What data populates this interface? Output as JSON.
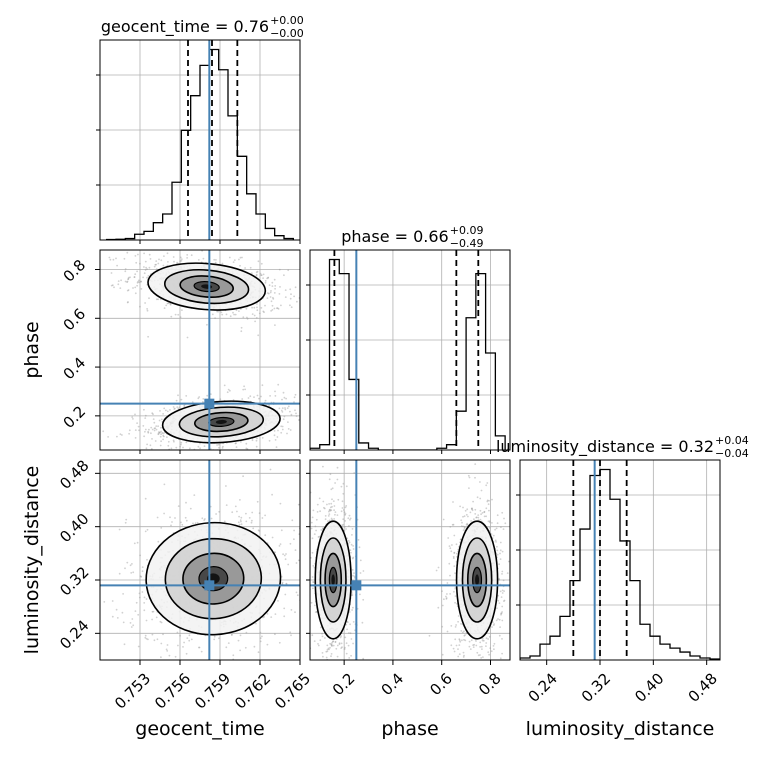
{
  "chart_data": {
    "type": "corner",
    "grid": true,
    "parameters": [
      {
        "name": "geocent_time",
        "xlabel": "geocent_time",
        "ylabel": "",
        "range": [
          0.75,
          0.765
        ],
        "ticks": [
          "0.753",
          "0.756",
          "0.759",
          "0.762",
          "0.765"
        ],
        "tick_values": [
          0.753,
          0.756,
          0.759,
          0.762,
          0.765
        ],
        "truth": 0.7582,
        "quantiles": [
          0.7566,
          0.7584,
          0.7603
        ],
        "title_main": "geocent_time = 0.76",
        "title_sup": "+0.00",
        "title_sub": "−0.00",
        "hist_bins": [
          0.7505,
          0.7512,
          0.7519,
          0.7526,
          0.7533,
          0.754,
          0.7547,
          0.7554,
          0.7561,
          0.7568,
          0.7575,
          0.7582,
          0.7589,
          0.7596,
          0.7603,
          0.761,
          0.7617,
          0.7624,
          0.7631,
          0.7638,
          0.7645
        ],
        "hist_counts": [
          0.3,
          0.5,
          1,
          4,
          6,
          12,
          18,
          40,
          76,
          100,
          121,
          132,
          118,
          86,
          58,
          32,
          18,
          8,
          3,
          1
        ]
      },
      {
        "name": "phase",
        "xlabel": "phase",
        "ylabel": "phase",
        "range": [
          0.06,
          0.88
        ],
        "ticks": [
          "0.2",
          "0.4",
          "0.6",
          "0.8"
        ],
        "tick_values": [
          0.2,
          0.4,
          0.6,
          0.8
        ],
        "truth": 0.25,
        "quantiles": [
          0.16,
          0.66,
          0.75
        ],
        "title_main": "phase = 0.66",
        "title_sup": "+0.09",
        "title_sub": "−0.49",
        "hist_bins": [
          0.06,
          0.1,
          0.14,
          0.18,
          0.22,
          0.26,
          0.3,
          0.34,
          0.38,
          0.42,
          0.46,
          0.5,
          0.54,
          0.58,
          0.62,
          0.66,
          0.7,
          0.74,
          0.78,
          0.82,
          0.86
        ],
        "hist_counts": [
          1,
          3,
          108,
          100,
          40,
          4,
          1,
          0,
          0,
          0,
          0,
          0,
          0,
          1,
          3,
          22,
          75,
          100,
          55,
          8
        ]
      },
      {
        "name": "luminosity_distance",
        "xlabel": "luminosity_distance",
        "ylabel": "luminosity_distance",
        "range": [
          0.2,
          0.5
        ],
        "ticks": [
          "0.24",
          "0.32",
          "0.40",
          "0.48"
        ],
        "tick_values": [
          0.24,
          0.32,
          0.4,
          0.48
        ],
        "truth": 0.312,
        "quantiles": [
          0.28,
          0.32,
          0.36
        ],
        "title_main": "luminosity_distance = 0.32",
        "title_sup": "+0.04",
        "title_sub": "−0.04",
        "hist_bins": [
          0.2,
          0.215,
          0.23,
          0.245,
          0.26,
          0.275,
          0.29,
          0.305,
          0.32,
          0.335,
          0.35,
          0.365,
          0.38,
          0.395,
          0.41,
          0.425,
          0.44,
          0.455,
          0.47,
          0.485,
          0.5
        ],
        "hist_counts": [
          1,
          2,
          8,
          12,
          22,
          40,
          66,
          93,
          96,
          81,
          60,
          40,
          18,
          12,
          8,
          6,
          4,
          2,
          1,
          0.5
        ]
      }
    ],
    "clusters": {
      "geocent_time_vs_phase": [
        {
          "cx": 0.758,
          "cy": 0.73,
          "sx": 0.0021,
          "sy": 0.045,
          "rho": -0.35
        },
        {
          "cx": 0.7591,
          "cy": 0.175,
          "sx": 0.0021,
          "sy": 0.04,
          "rho": 0.3
        }
      ],
      "geocent_time_vs_luminosity_distance": [
        {
          "cx": 0.7585,
          "cy": 0.322,
          "sx": 0.0024,
          "sy": 0.04,
          "rho": 0.1
        }
      ],
      "phase_vs_luminosity_distance": [
        {
          "cx": 0.155,
          "cy": 0.32,
          "sx": 0.035,
          "sy": 0.042,
          "rho": 0.0
        },
        {
          "cx": 0.745,
          "cy": 0.32,
          "sx": 0.04,
          "sy": 0.042,
          "rho": 0.0
        }
      ]
    },
    "colors": {
      "truth": "#4682b4",
      "hist": "#000000",
      "grid": "#b0b0b0",
      "points": "#9a9a9a"
    }
  }
}
